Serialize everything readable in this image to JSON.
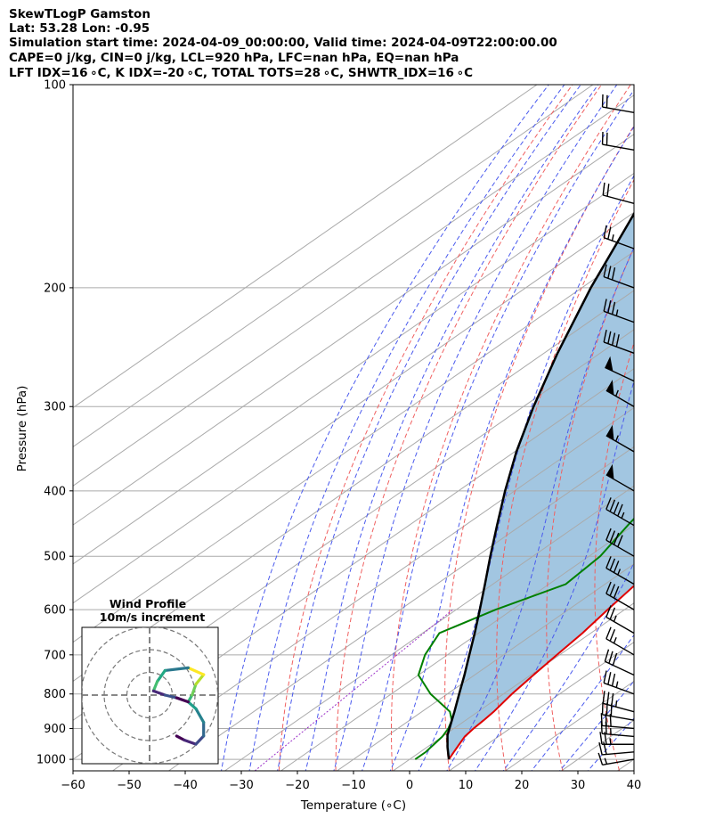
{
  "header": {
    "line1": "SkewTLogP Gamston",
    "line2": "Lat: 53.28   Lon: -0.95",
    "line3": "Simulation start time: 2024-04-09_00:00:00, Valid time: 2024-04-09T22:00:00.00",
    "line4": "CAPE=0 j/kg, CIN=0 j/kg, LCL=920 hPa, LFC=nan hPa, EQ=nan hPa",
    "line5": "LFT IDX=16 ∘C, K IDX=-20 ∘C, TOTAL TOTS=28 ∘C, SHWTR_IDX=16 ∘C"
  },
  "chart_data": {
    "type": "skewt",
    "xlabel": "Temperature (∘C)",
    "ylabel": "Pressure (hPa)",
    "xlim": [
      -60,
      40
    ],
    "ylim": [
      1040,
      100
    ],
    "skew_c_per_log": 75,
    "x_ticks": [
      -60,
      -50,
      -40,
      -30,
      -20,
      -10,
      0,
      10,
      20,
      30,
      40
    ],
    "x_tick_labels": [
      "−60",
      "−50",
      "−40",
      "−30",
      "−20",
      "−10",
      "0",
      "10",
      "20",
      "30",
      "40"
    ],
    "y_ticks": [
      100,
      200,
      300,
      400,
      500,
      600,
      700,
      800,
      900,
      1000
    ],
    "temperature": {
      "color": "#e00000",
      "p": [
        1000,
        975,
        950,
        925,
        900,
        875,
        850,
        800,
        750,
        700,
        650,
        600,
        550,
        500,
        450,
        400,
        350,
        300,
        275,
        250,
        225,
        200,
        180,
        160,
        140,
        125,
        110,
        100
      ],
      "t": [
        7,
        6,
        5,
        4,
        3.5,
        3.2,
        2.8,
        1.5,
        0.5,
        -0.5,
        -1.5,
        -3,
        -4.5,
        -7,
        -12,
        -18,
        -25,
        -34,
        -39,
        -43,
        -48,
        -55,
        -57,
        -61,
        -65,
        -68,
        -72,
        -74
      ]
    },
    "dewpoint": {
      "color": "#008000",
      "p": [
        1000,
        975,
        950,
        925,
        900,
        875,
        850,
        800,
        750,
        700,
        650,
        600,
        550,
        500,
        450,
        400,
        370,
        350,
        320,
        300,
        270,
        245,
        220,
        200,
        180,
        160,
        140,
        120,
        100
      ],
      "td": [
        1,
        1,
        0.5,
        0,
        -1,
        -2.5,
        -5,
        -13,
        -20,
        -24,
        -27,
        -23,
        -17,
        -18,
        -21,
        -24,
        -24.5,
        -29,
        -32,
        -36,
        -39,
        -43,
        -48,
        -56,
        -75,
        -80,
        -87,
        -93,
        -100
      ]
    },
    "parcel": {
      "color": "#000000",
      "p": [
        1000,
        960,
        920,
        900,
        850,
        800,
        750,
        700,
        650,
        600,
        550,
        500,
        450,
        400,
        350,
        300,
        250,
        200,
        150,
        120,
        100
      ],
      "t": [
        7,
        3.7,
        0.5,
        -0.8,
        -4.2,
        -7.9,
        -11.8,
        -16.1,
        -20.7,
        -25.8,
        -31.4,
        -37.6,
        -44.3,
        -51.7,
        -59.7,
        -68.2,
        -77.6,
        -88.4,
        -101.2,
        -110.7,
        -117.6
      ]
    },
    "cin_fill": "#a2c6e1",
    "isobar_color": "#aaaaaa",
    "isotherm_color": "#aaaaaa",
    "isotherm_values": [
      -150,
      -140,
      -130,
      -120,
      -110,
      -100,
      -90,
      -80,
      -70,
      -60,
      -50,
      -40,
      -30,
      -20,
      -10,
      0,
      10,
      20,
      30,
      40
    ],
    "dry_adiabat_color": "#f06060",
    "dry_adiabat_thetas": [
      250,
      260,
      270,
      280,
      290,
      300,
      310,
      320,
      330,
      340,
      350,
      360,
      370,
      380,
      390,
      400,
      420,
      440,
      460,
      480,
      500,
      520,
      540
    ],
    "moist_adiabat_color": "#4a5aee",
    "moist_adiabat_starts": [
      -30,
      -25,
      -20,
      -15,
      -10,
      -5,
      0,
      5,
      10,
      15,
      20,
      25,
      30,
      35
    ],
    "mixing_ratio_color": "#9b30c8",
    "wind_barbs": {
      "p": [
        1000,
        975,
        950,
        925,
        900,
        875,
        850,
        800,
        750,
        700,
        650,
        600,
        550,
        500,
        450,
        400,
        350,
        300,
        275,
        250,
        225,
        200,
        175,
        150,
        125,
        110
      ],
      "speed_kt": [
        15,
        20,
        25,
        25,
        30,
        30,
        35,
        35,
        30,
        25,
        25,
        30,
        35,
        40,
        45,
        50,
        55,
        55,
        50,
        40,
        35,
        30,
        25,
        20,
        20,
        20
      ],
      "dir_deg": [
        260,
        265,
        270,
        275,
        275,
        280,
        285,
        290,
        295,
        300,
        300,
        300,
        300,
        300,
        300,
        300,
        300,
        300,
        295,
        290,
        290,
        290,
        290,
        285,
        280,
        280
      ]
    },
    "hodograph": {
      "title": "Wind Profile",
      "subtitle": "10m/s increment",
      "u": [
        3.5,
        4.5,
        6,
        7,
        7,
        6,
        5,
        5.5,
        6,
        7,
        5,
        2,
        1,
        0.5,
        2,
        3.5,
        5
      ],
      "v": [
        -3,
        -3.3,
        -3.6,
        -3,
        -2,
        -1,
        -0.5,
        0,
        0.8,
        1.5,
        2,
        1.8,
        1,
        0.3,
        0,
        -0.2,
        -0.5
      ]
    }
  }
}
